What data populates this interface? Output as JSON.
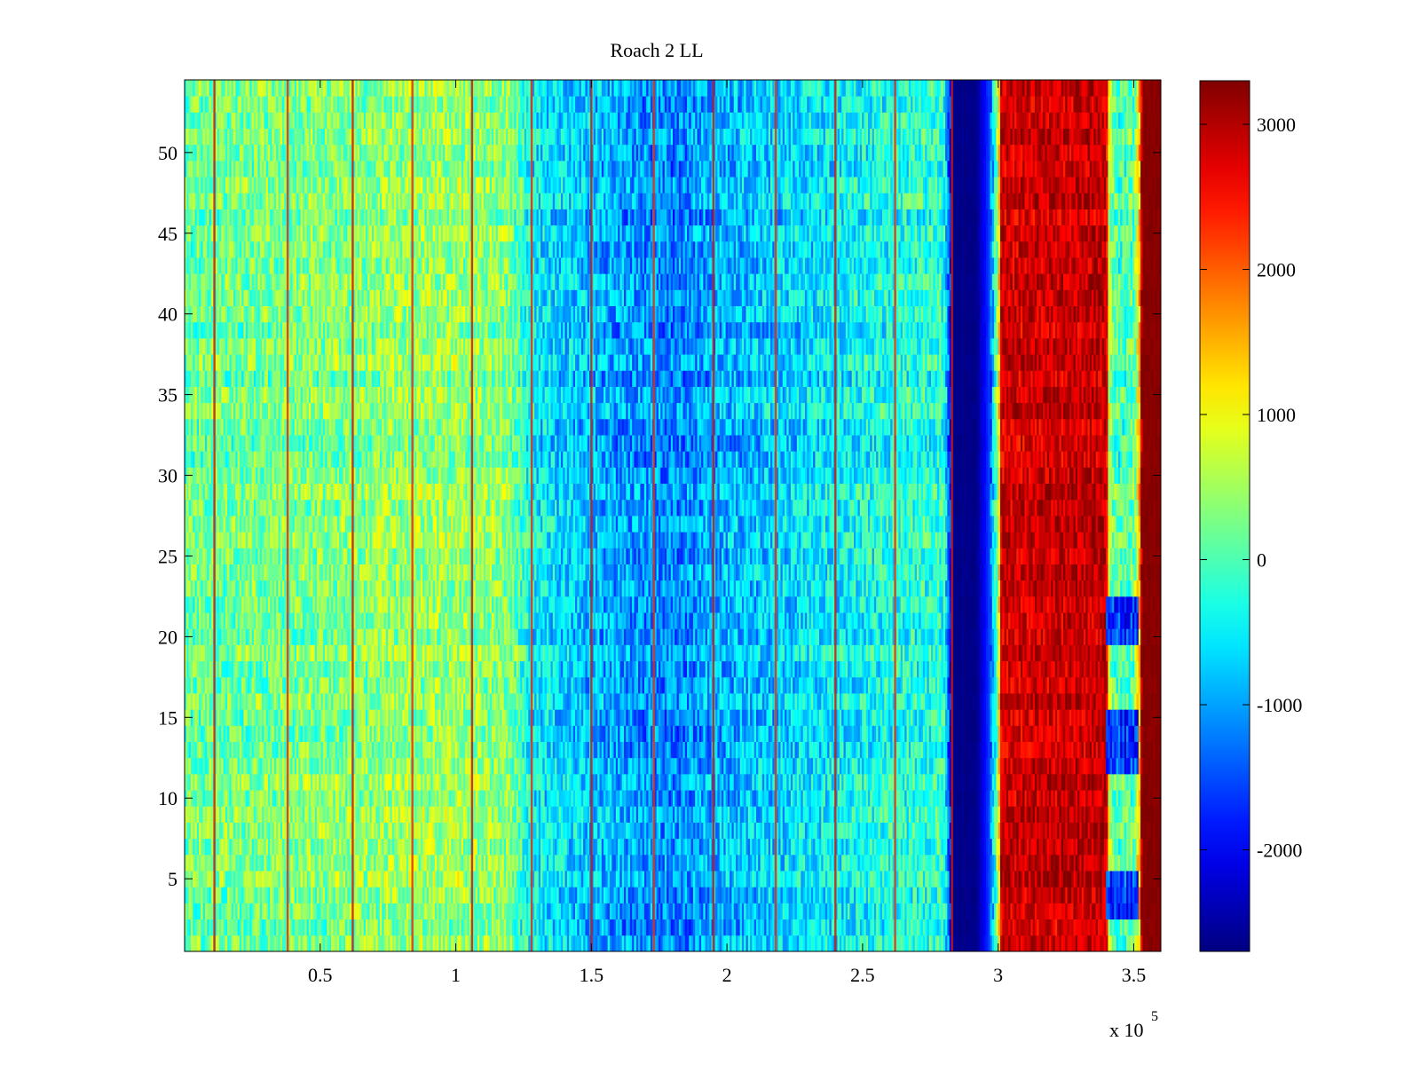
{
  "figure": {
    "title": "Roach 2 LL",
    "x_multiplier_base": "x 10",
    "x_multiplier_exp": "5"
  },
  "chart_data": {
    "type": "heatmap",
    "title": "Roach 2 LL",
    "xlabel": "",
    "ylabel": "",
    "colormap": "jet",
    "grid": false,
    "xlim": [
      0,
      360000
    ],
    "ylim": [
      0.5,
      54.5
    ],
    "x_ticks": [
      50000,
      100000,
      150000,
      200000,
      250000,
      300000,
      350000
    ],
    "x_tick_labels": [
      "0.5",
      "1",
      "1.5",
      "2",
      "2.5",
      "3",
      "3.5"
    ],
    "x_tick_multiplier": "x 10^5",
    "y_ticks": [
      5,
      10,
      15,
      20,
      25,
      30,
      35,
      40,
      45,
      50
    ],
    "y_tick_labels": [
      "5",
      "10",
      "15",
      "20",
      "25",
      "30",
      "35",
      "40",
      "45",
      "50"
    ],
    "rows": 54,
    "color_range": [
      -2700,
      3300
    ],
    "colorbar": {
      "ticks": [
        -2000,
        -1000,
        0,
        1000,
        2000,
        3000
      ],
      "tick_labels": [
        "-2000",
        "-1000",
        "0",
        "1000",
        "2000",
        "3000"
      ]
    },
    "column_profile": {
      "x": [
        0,
        20000,
        40000,
        60000,
        80000,
        100000,
        120000,
        128000,
        140000,
        160000,
        180000,
        200000,
        220000,
        240000,
        260000,
        280000,
        282000,
        283000,
        292000,
        297000,
        300000,
        301000,
        340000,
        341000,
        344000,
        350000,
        352000,
        353000,
        360000
      ],
      "mean_value": [
        150,
        200,
        250,
        300,
        400,
        450,
        300,
        -500,
        -700,
        -1000,
        -1200,
        -900,
        -700,
        -500,
        -300,
        -200,
        -1500,
        -2650,
        -2650,
        -1500,
        500,
        2800,
        2900,
        500,
        -100,
        100,
        1200,
        3250,
        3250
      ]
    },
    "column_profile_alt": {
      "description_rows": [
        3,
        4,
        5,
        12,
        13,
        14,
        15,
        20,
        21,
        22
      ],
      "x": [
        340000,
        341000,
        352000
      ],
      "mean_value": [
        -100,
        -1600,
        -1600
      ]
    },
    "spike_lines_x": [
      11000,
      38000,
      62000,
      84000,
      106000,
      128000,
      150000,
      173000,
      195000,
      218000,
      240000,
      262000,
      283000
    ]
  }
}
